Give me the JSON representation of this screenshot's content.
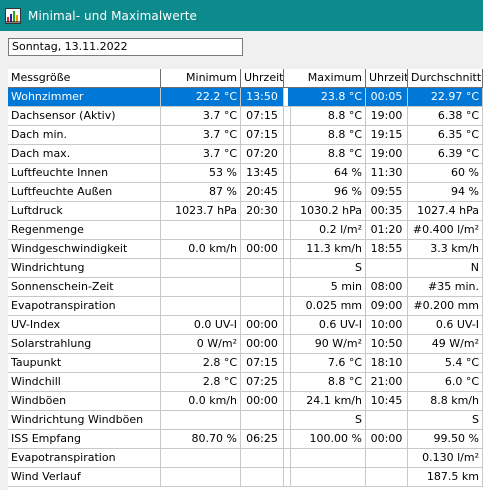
{
  "window": {
    "title": "Minimal- und Maximalwerte",
    "icon": "app-graph-icon"
  },
  "date_field": {
    "value": "Sonntag, 13.11.2022"
  },
  "table": {
    "headers": [
      "Messgröße",
      "Minimum",
      "Uhrzeit",
      "Maximum",
      "Uhrzeit",
      "Durchschnitt"
    ],
    "selected_row": 0,
    "rows": [
      [
        "Wohnzimmer",
        "22.2 °C",
        "13:50",
        "23.8 °C",
        "00:05",
        "22.97 °C"
      ],
      [
        "Dachsensor (Aktiv)",
        "3.7 °C",
        "07:15",
        "8.8 °C",
        "19:00",
        "6.38 °C"
      ],
      [
        "Dach min.",
        "3.7 °C",
        "07:15",
        "8.8 °C",
        "19:15",
        "6.35 °C"
      ],
      [
        "Dach max.",
        "3.7 °C",
        "07:20",
        "8.8 °C",
        "19:00",
        "6.39 °C"
      ],
      [
        "Luftfeuchte Innen",
        "53 %",
        "13:45",
        "64 %",
        "11:30",
        "60 %"
      ],
      [
        "Luftfeuchte Außen",
        "87 %",
        "20:45",
        "96 %",
        "09:55",
        "94 %"
      ],
      [
        "Luftdruck",
        "1023.7 hPa",
        "20:30",
        "1030.2 hPa",
        "00:35",
        "1027.4 hPa"
      ],
      [
        "Regenmenge",
        "",
        "",
        "0.2 l/m²",
        "01:20",
        "#0.400 l/m²"
      ],
      [
        "Windgeschwindigkeit",
        "0.0 km/h",
        "00:00",
        "11.3 km/h",
        "18:55",
        "3.3 km/h"
      ],
      [
        "Windrichtung",
        "",
        "",
        "S",
        "",
        "N"
      ],
      [
        "Sonnenschein-Zeit",
        "",
        "",
        "5 min",
        "08:00",
        "#35 min."
      ],
      [
        "Evapotranspiration",
        "",
        "",
        "0.025 mm",
        "09:00",
        "#0.200 mm"
      ],
      [
        "UV-Index",
        "0.0 UV-I",
        "00:00",
        "0.6 UV-I",
        "10:00",
        "0.6 UV-I"
      ],
      [
        "Solarstrahlung",
        "0 W/m²",
        "00:00",
        "90 W/m²",
        "10:50",
        "49 W/m²"
      ],
      [
        "Taupunkt",
        "2.8 °C",
        "07:15",
        "7.6 °C",
        "18:10",
        "5.4 °C"
      ],
      [
        "Windchill",
        "2.8 °C",
        "07:25",
        "8.8 °C",
        "21:00",
        "6.0 °C"
      ],
      [
        "Windböen",
        "0.0 km/h",
        "00:00",
        "24.1 km/h",
        "10:45",
        "8.8 km/h"
      ],
      [
        "Windrichtung Windböen",
        "",
        "",
        "S",
        "",
        "S"
      ],
      [
        "ISS Empfang",
        "80.70 %",
        "06:25",
        "100.00 %",
        "00:00",
        "99.50 %"
      ],
      [
        "Evapotranspiration",
        "",
        "",
        "",
        "",
        "0.130 l/m²"
      ],
      [
        "Wind Verlauf",
        "",
        "",
        "",
        "",
        "187.5 km"
      ]
    ]
  }
}
